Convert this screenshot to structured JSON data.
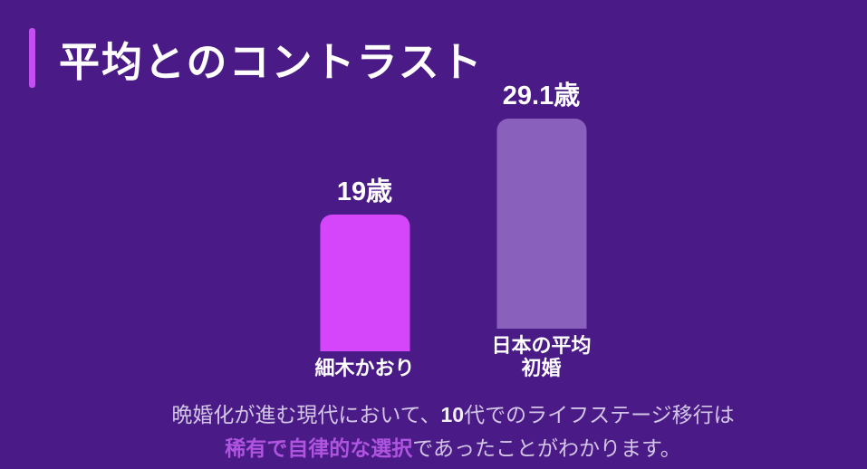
{
  "header": {
    "title": "平均とのコントラスト"
  },
  "chart_data": {
    "type": "bar",
    "title": "平均とのコントラスト",
    "categories": [
      "細木かおり",
      "日本の平均初婚"
    ],
    "category_lines": [
      [
        "細木かおり"
      ],
      [
        "日本の平均",
        "初婚"
      ]
    ],
    "values": [
      19,
      29.1
    ],
    "value_labels": [
      "19歳",
      "29.1歳"
    ],
    "unit": "歳",
    "bar_colors": [
      "#d546fa",
      "#8a60bd"
    ],
    "ylim": [
      0,
      29.1
    ],
    "xlabel": "",
    "ylabel": "",
    "grid": false,
    "legend": false
  },
  "caption": {
    "line1_pre": "晩婚化が進む現代において、",
    "line1_strong": "10",
    "line1_post": "代でのライフステージ移行は",
    "line2_highlight": "稀有で自律的な選択",
    "line2_rest": "であったことがわかります。"
  },
  "colors": {
    "background": "#4a1b86",
    "accent_bar": "#c44ff0",
    "bar_primary": "#d546fa",
    "bar_secondary": "#8a60bd",
    "title_text": "#ffffff",
    "caption_text": "#d2c5e5",
    "caption_highlight": "#ae54de"
  }
}
